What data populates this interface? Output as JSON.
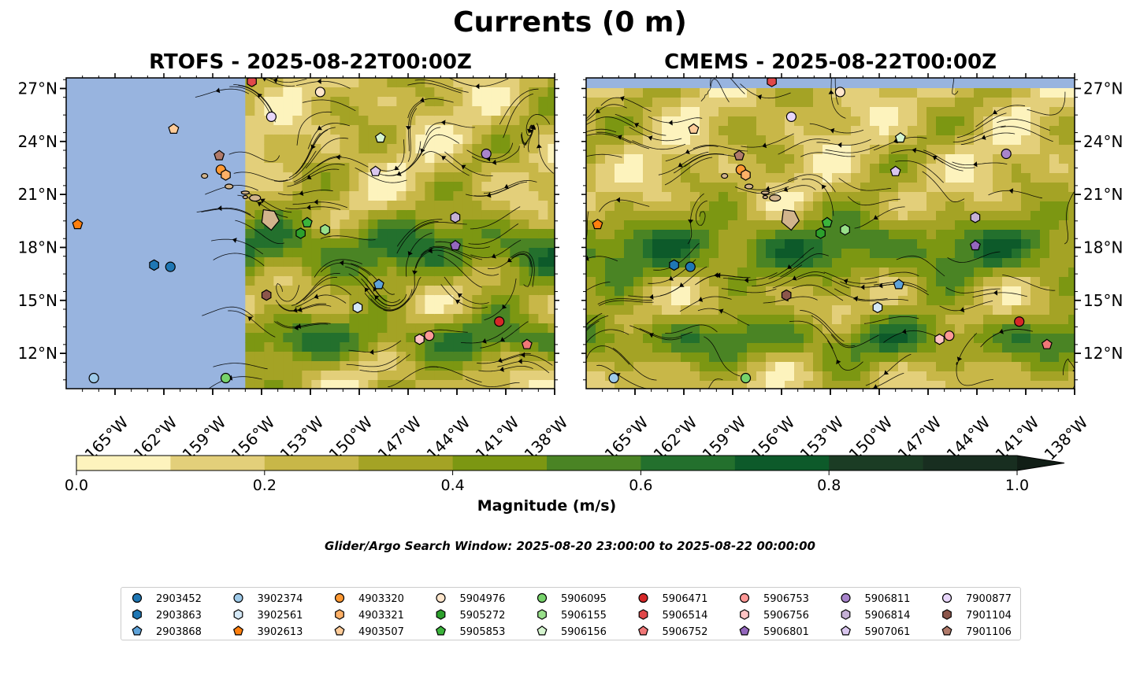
{
  "title": "Currents (0 m)",
  "panels": [
    {
      "title": "RTOFS - 2025-08-22T00:00Z",
      "label_side": "left",
      "data_start_lon": -157.0
    },
    {
      "title": "CMEMS - 2025-08-22T00:00Z",
      "label_side": "right",
      "data_start_lon": -168.0
    }
  ],
  "map_extent": {
    "lon": [
      -168,
      -138
    ],
    "lat": [
      10,
      27.6
    ]
  },
  "lat_ticks": [
    "27°N",
    "24°N",
    "21°N",
    "18°N",
    "15°N",
    "12°N"
  ],
  "lat_tick_values": [
    27,
    24,
    21,
    18,
    15,
    12
  ],
  "lon_ticks": [
    "165°W",
    "162°W",
    "159°W",
    "156°W",
    "153°W",
    "150°W",
    "147°W",
    "144°W",
    "141°W",
    "138°W"
  ],
  "lon_tick_values": [
    -165,
    -162,
    -159,
    -156,
    -153,
    -150,
    -147,
    -144,
    -141,
    -138
  ],
  "colorbar": {
    "label": "Magnitude (m/s)",
    "ticks": [
      "0.0",
      "0.2",
      "0.4",
      "0.6",
      "0.8",
      "1.0"
    ],
    "colors": [
      "#fdf3bd",
      "#e3cf7a",
      "#c8b748",
      "#a4a325",
      "#7c9712",
      "#4a8424",
      "#23702d",
      "#0d5a2a",
      "#1b3c24",
      "#182e20"
    ],
    "extend_color": "#111e16"
  },
  "colors": {
    "ocean_bg": "#98b4df",
    "land": "#d2b48c"
  },
  "search_window": "Glider/Argo Search Window: 2025-08-20 23:00:00 to 2025-08-22 00:00:00",
  "legend": [
    {
      "id": "2903452",
      "marker": "circle",
      "color": "#1f77b4"
    },
    {
      "id": "2903863",
      "marker": "hexagon",
      "color": "#1f77b4"
    },
    {
      "id": "2903868",
      "marker": "pentagon",
      "color": "#5fa3d9"
    },
    {
      "id": "3902374",
      "marker": "circle",
      "color": "#9ecae9"
    },
    {
      "id": "3902561",
      "marker": "hexagon",
      "color": "#d4e8f6"
    },
    {
      "id": "3902613",
      "marker": "pentagon",
      "color": "#ff7f0e"
    },
    {
      "id": "4903320",
      "marker": "circle",
      "color": "#ff9933"
    },
    {
      "id": "4903321",
      "marker": "hexagon",
      "color": "#ffb066"
    },
    {
      "id": "4903507",
      "marker": "pentagon",
      "color": "#ffcc99"
    },
    {
      "id": "5904976",
      "marker": "circle",
      "color": "#ffe6cc"
    },
    {
      "id": "5905272",
      "marker": "hexagon",
      "color": "#2ca02c"
    },
    {
      "id": "5905853",
      "marker": "pentagon",
      "color": "#3cb43c"
    },
    {
      "id": "5906095",
      "marker": "circle",
      "color": "#77d36b"
    },
    {
      "id": "5906155",
      "marker": "hexagon",
      "color": "#98df8a"
    },
    {
      "id": "5906156",
      "marker": "pentagon",
      "color": "#d6f5d0"
    },
    {
      "id": "5906471",
      "marker": "circle",
      "color": "#d62728"
    },
    {
      "id": "5906514",
      "marker": "hexagon",
      "color": "#e0484a"
    },
    {
      "id": "5906752",
      "marker": "pentagon",
      "color": "#f07777"
    },
    {
      "id": "5906753",
      "marker": "circle",
      "color": "#ff9896"
    },
    {
      "id": "5906756",
      "marker": "hexagon",
      "color": "#ffc4c4"
    },
    {
      "id": "5906801",
      "marker": "pentagon",
      "color": "#9467bd"
    },
    {
      "id": "5906811",
      "marker": "circle",
      "color": "#a884cc"
    },
    {
      "id": "5906814",
      "marker": "hexagon",
      "color": "#c5b0d5"
    },
    {
      "id": "5907061",
      "marker": "pentagon",
      "color": "#d9c6ee"
    },
    {
      "id": "7900877",
      "marker": "circle",
      "color": "#e8d6fb"
    },
    {
      "id": "7901104",
      "marker": "hexagon",
      "color": "#8c564b"
    },
    {
      "id": "7901106",
      "marker": "pentagon",
      "color": "#b07a6a"
    }
  ],
  "platform_positions": [
    {
      "id": "2903452",
      "lon": -161.6,
      "lat": 16.9
    },
    {
      "id": "2903863",
      "lon": -162.6,
      "lat": 17.0
    },
    {
      "id": "2903868",
      "lon": -148.8,
      "lat": 15.9
    },
    {
      "id": "3902374",
      "lon": -166.3,
      "lat": 10.6
    },
    {
      "id": "3902561",
      "lon": -150.1,
      "lat": 14.6
    },
    {
      "id": "3902613",
      "lon": -167.3,
      "lat": 19.3
    },
    {
      "id": "4903320",
      "lon": -158.5,
      "lat": 22.4
    },
    {
      "id": "4903321",
      "lon": -158.2,
      "lat": 22.1
    },
    {
      "id": "4903507",
      "lon": -161.4,
      "lat": 24.7
    },
    {
      "id": "5904976",
      "lon": -152.4,
      "lat": 26.8
    },
    {
      "id": "5905272",
      "lon": -153.6,
      "lat": 18.8
    },
    {
      "id": "5905853",
      "lon": -153.2,
      "lat": 19.4
    },
    {
      "id": "5906095",
      "lon": -158.2,
      "lat": 10.6
    },
    {
      "id": "5906155",
      "lon": -152.1,
      "lat": 19.0
    },
    {
      "id": "5906156",
      "lon": -148.7,
      "lat": 24.2
    },
    {
      "id": "5906471",
      "lon": -141.4,
      "lat": 13.8
    },
    {
      "id": "5906514",
      "lon": -156.6,
      "lat": 27.4
    },
    {
      "id": "5906752",
      "lon": -139.7,
      "lat": 12.5
    },
    {
      "id": "5906753",
      "lon": -145.7,
      "lat": 13.0
    },
    {
      "id": "5906756",
      "lon": -146.3,
      "lat": 12.8
    },
    {
      "id": "5906801",
      "lon": -144.1,
      "lat": 18.1
    },
    {
      "id": "5906811",
      "lon": -142.2,
      "lat": 23.3
    },
    {
      "id": "5906814",
      "lon": -144.1,
      "lat": 19.7
    },
    {
      "id": "5907061",
      "lon": -149.0,
      "lat": 22.3
    },
    {
      "id": "7900877",
      "lon": -155.4,
      "lat": 25.4
    },
    {
      "id": "7901104",
      "lon": -155.7,
      "lat": 15.3
    },
    {
      "id": "7901106",
      "lon": -158.6,
      "lat": 23.2
    }
  ]
}
